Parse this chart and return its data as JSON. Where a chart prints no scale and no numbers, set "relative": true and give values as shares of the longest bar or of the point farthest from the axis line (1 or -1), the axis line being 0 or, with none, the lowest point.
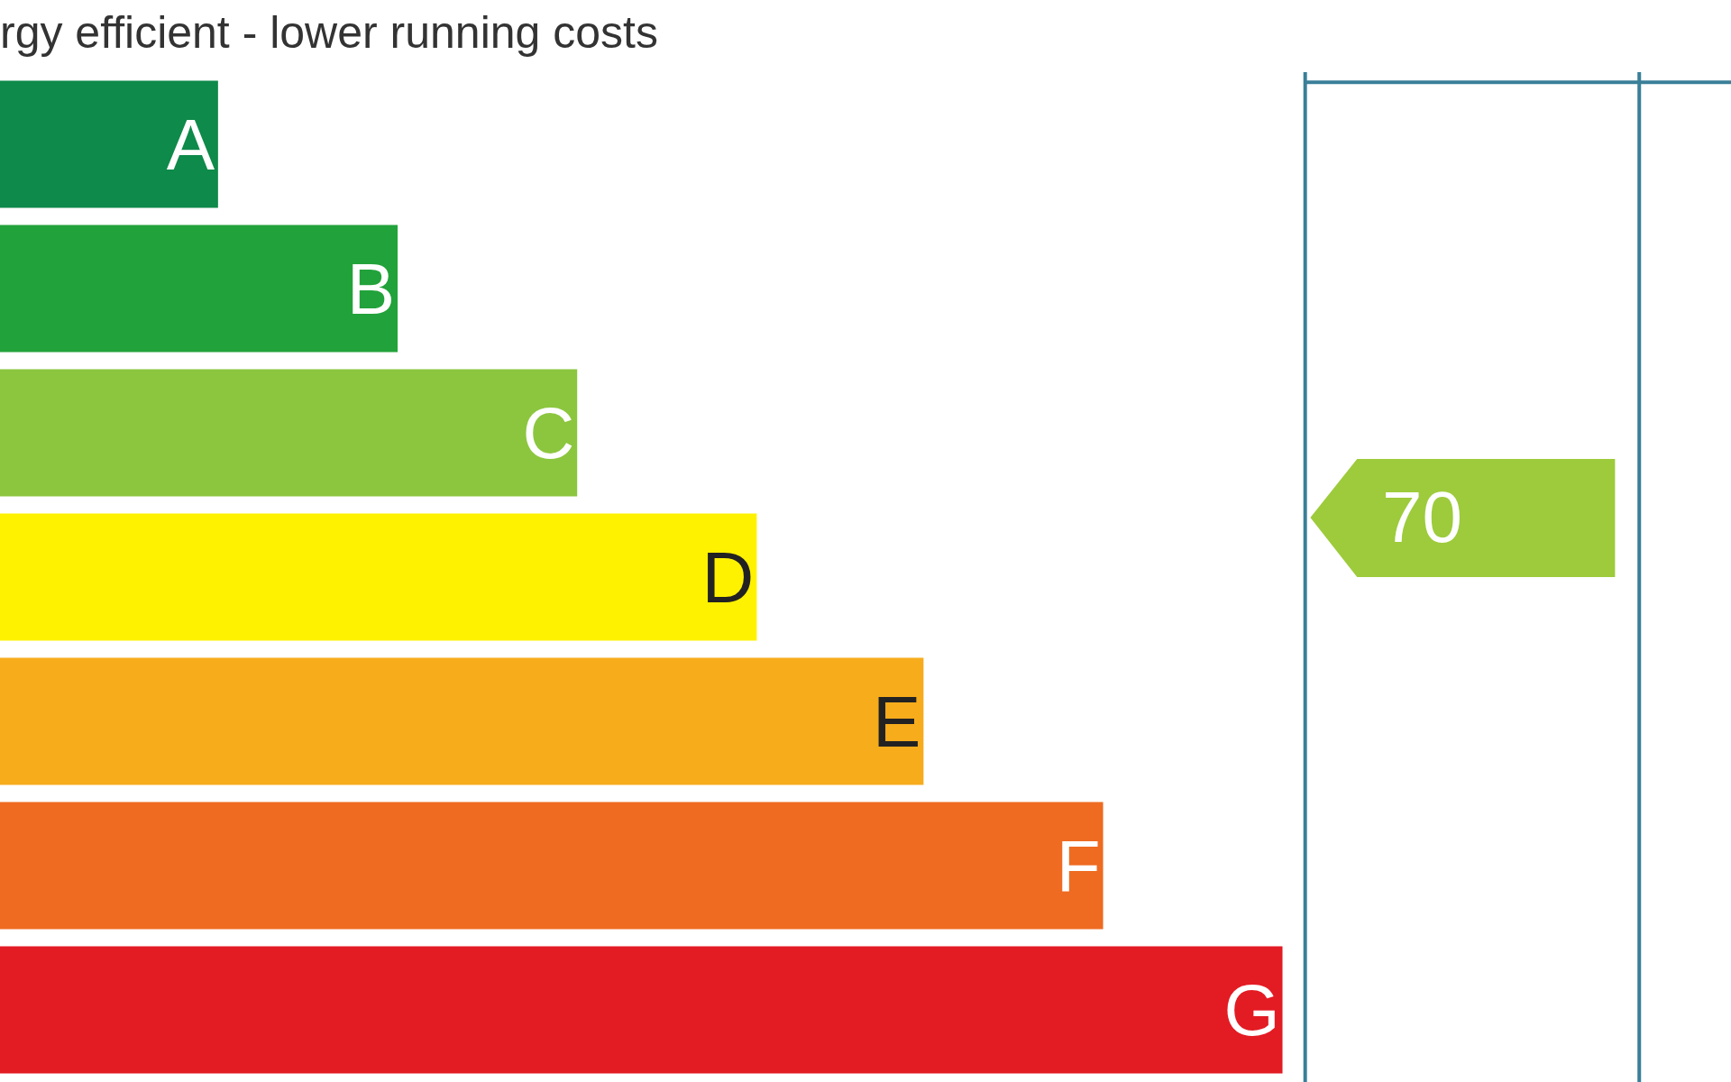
{
  "chart_data": {
    "type": "bar",
    "orientation": "horizontal",
    "relative": true,
    "title": "rgy efficient - lower running costs",
    "categories": [
      "A",
      "B",
      "C",
      "D",
      "E",
      "F",
      "G"
    ],
    "values": [
      0.17,
      0.31,
      0.45,
      0.59,
      0.72,
      0.86,
      1
    ],
    "colors": [
      "#0e8a4a",
      "#22a23a",
      "#8cc63f",
      "#fff200",
      "#f7ac1c",
      "#ee6b21",
      "#e31b23"
    ],
    "tick_labels": false,
    "annotations": [
      "70"
    ]
  }
}
